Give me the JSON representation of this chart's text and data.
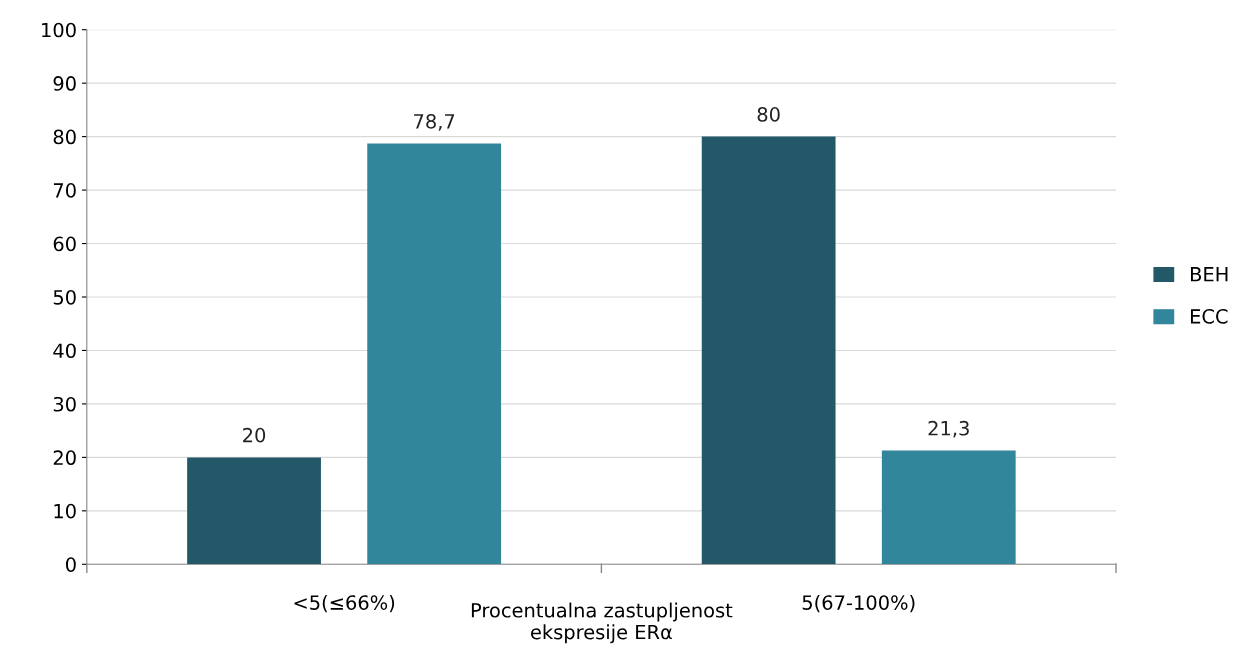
{
  "chart_data": {
    "type": "bar",
    "xlabel": "Procentualna zastupljenost\nekspresije ERα",
    "categories": [
      "<5(≤66%)",
      "5(67-100%)"
    ],
    "series": [
      {
        "name": "BEH",
        "color": "#235868",
        "values": [
          20,
          80
        ],
        "value_labels": [
          "20",
          "80"
        ]
      },
      {
        "name": "ECC",
        "color": "#31869b",
        "values": [
          78.7,
          21.3
        ],
        "value_labels": [
          "78,7",
          "21,3"
        ]
      }
    ],
    "ylim": [
      0,
      100
    ],
    "yticks": [
      0,
      10,
      20,
      30,
      40,
      50,
      60,
      70,
      80,
      90,
      100
    ],
    "grid": "y",
    "legend": "right"
  }
}
